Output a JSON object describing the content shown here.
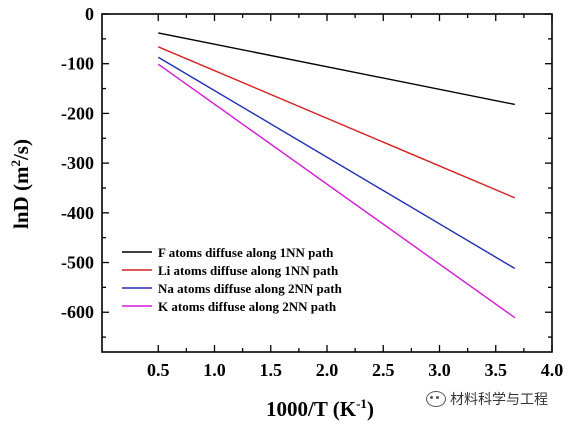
{
  "chart_data": {
    "type": "line",
    "xlabel": "1000/T (K",
    "xlabel_sup": "-1",
    "xlabel_end": ")",
    "ylabel": "lnD (m",
    "ylabel_sup": "2",
    "ylabel_end": "/s)",
    "xlim": [
      0.0,
      4.0
    ],
    "ylim": [
      -680,
      0
    ],
    "xticks": [
      0.5,
      1.0,
      1.5,
      2.0,
      2.5,
      3.0,
      3.5,
      4.0
    ],
    "xtick_labels": [
      "0.5",
      "1.0",
      "1.5",
      "2.0",
      "2.5",
      "3.0",
      "3.5",
      "4.0"
    ],
    "yticks": [
      0,
      -100,
      -200,
      -300,
      -400,
      -500,
      -600
    ],
    "ytick_labels": [
      "0",
      "-100",
      "-200",
      "-300",
      "-400",
      "-500",
      "-600"
    ],
    "legend_position": "lower-left",
    "grid": false,
    "series": [
      {
        "name": "F atoms diffuse along 1NN path",
        "color": "#000000",
        "x": [
          0.5,
          3.67
        ],
        "y": [
          -38,
          -182
        ]
      },
      {
        "name": "Li atoms diffuse along 1NN path",
        "color": "#d62020",
        "x": [
          0.5,
          3.67
        ],
        "y": [
          -66,
          -370
        ]
      },
      {
        "name": "Na atoms diffuse along 2NN path",
        "color": "#1f2fb5",
        "x": [
          0.5,
          3.67
        ],
        "y": [
          -87,
          -512
        ]
      },
      {
        "name": "K atoms diffuse along 2NN path",
        "color": "#d31ad3",
        "x": [
          0.5,
          3.67
        ],
        "y": [
          -101,
          -611
        ]
      }
    ]
  },
  "watermark": {
    "text": "材料科学与工程",
    "icon": "wechat-icon"
  }
}
